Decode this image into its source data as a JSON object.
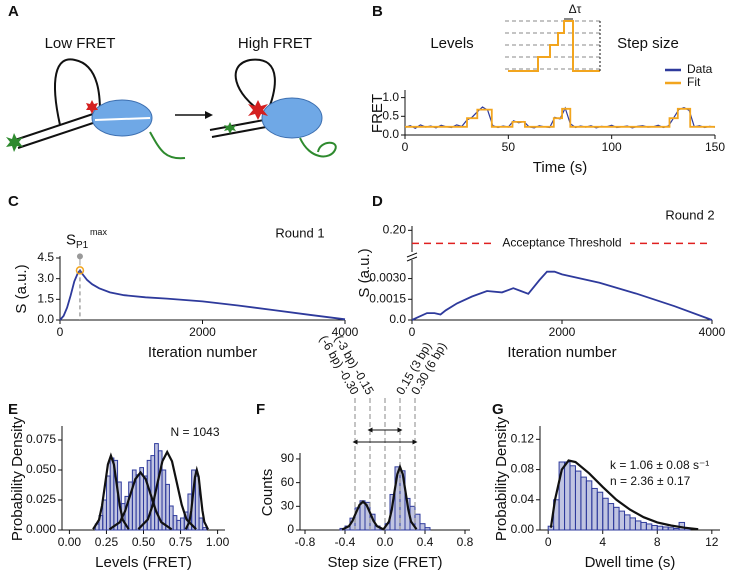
{
  "figure": {
    "panel_labels": [
      "A",
      "B",
      "C",
      "D",
      "E",
      "F",
      "G"
    ],
    "diagram": {
      "low": "Low FRET",
      "high": "High FRET"
    },
    "schematic": {
      "levels": "Levels",
      "step_size": "Step size",
      "dwell": "Δτ"
    }
  },
  "chart_data": [
    {
      "type": "line",
      "x_label": "Time (s)",
      "y_label": "FRET",
      "xlim": [
        0,
        150
      ],
      "ylim": [
        0,
        1.15
      ],
      "xticks": [
        0,
        50,
        100,
        150
      ],
      "yticks": [
        {
          "value": 0,
          "label": "0.0"
        },
        {
          "value": 0.5,
          "label": "0.5"
        },
        {
          "value": 1,
          "label": "1.0"
        }
      ],
      "legend": "upper right",
      "series": [
        {
          "name": "Data",
          "color": "#2e3a9c",
          "x": [
            0,
            2.5,
            5,
            7.5,
            10,
            12.5,
            15,
            17.5,
            20,
            22.5,
            25,
            27.5,
            30,
            32.5,
            35,
            37.5,
            40,
            42.5,
            45,
            47.5,
            50,
            52.5,
            55,
            57.5,
            60,
            62.5,
            65,
            67.5,
            70,
            72.5,
            75,
            77.5,
            80,
            82.5,
            85,
            87.5,
            90,
            92.5,
            95,
            97.5,
            100,
            102.5,
            105,
            107.5,
            110,
            112.5,
            115,
            117.5,
            120,
            122.5,
            125,
            127.5,
            130,
            132.5,
            135,
            137.5,
            140,
            142.5,
            145,
            147.5,
            150
          ],
          "values": [
            0.2,
            0.25,
            0.18,
            0.27,
            0.21,
            0.24,
            0.19,
            0.26,
            0.22,
            0.2,
            0.27,
            0.23,
            0.4,
            0.48,
            0.62,
            0.75,
            0.66,
            0.25,
            0.2,
            0.24,
            0.21,
            0.38,
            0.33,
            0.36,
            0.22,
            0.19,
            0.25,
            0.22,
            0.2,
            0.47,
            0.43,
            0.72,
            0.3,
            0.2,
            0.24,
            0.21,
            0.25,
            0.19,
            0.23,
            0.22,
            0.26,
            0.2,
            0.22,
            0.24,
            0.19,
            0.23,
            0.25,
            0.21,
            0.22,
            0.26,
            0.2,
            0.24,
            0.46,
            0.68,
            0.73,
            0.66,
            0.22,
            0.25,
            0.2,
            0.23,
            0.21
          ]
        },
        {
          "name": "Fit",
          "color": "#f2a51e",
          "x": [
            0,
            30,
            30,
            35,
            35,
            42,
            42,
            52,
            52,
            58,
            58,
            72,
            72,
            76,
            76,
            80,
            80,
            128,
            128,
            132,
            132,
            138,
            138,
            150
          ],
          "values": [
            0.22,
            0.22,
            0.45,
            0.45,
            0.68,
            0.68,
            0.22,
            0.22,
            0.35,
            0.35,
            0.22,
            0.22,
            0.45,
            0.45,
            0.7,
            0.7,
            0.22,
            0.22,
            0.45,
            0.45,
            0.7,
            0.7,
            0.22,
            0.22
          ]
        }
      ]
    },
    {
      "type": "line",
      "title": "Round 1",
      "x_label": "Iteration number",
      "y_label": "S (a.u.)",
      "xlim": [
        0,
        4000
      ],
      "ylim": [
        0,
        4.5
      ],
      "xticks": [
        0,
        2000,
        4000
      ],
      "yticks": [
        {
          "value": 0,
          "label": "0.0"
        },
        {
          "value": 1.5,
          "label": "1.5"
        },
        {
          "value": 3,
          "label": "3.0"
        },
        {
          "value": 4.5,
          "label": "4.5"
        }
      ],
      "peak": {
        "x": 280,
        "y": 3.6,
        "label": "S",
        "subscript": "P1",
        "superscript": "max"
      },
      "series": [
        {
          "color": "#2e3a9c",
          "x": [
            0,
            50,
            100,
            150,
            200,
            250,
            280,
            320,
            380,
            450,
            550,
            700,
            900,
            1200,
            1500,
            2000,
            2500,
            3000,
            3500,
            4000
          ],
          "values": [
            0,
            0.3,
            0.9,
            1.8,
            2.8,
            3.4,
            3.6,
            3.3,
            2.9,
            2.6,
            2.3,
            2.0,
            1.8,
            1.65,
            1.55,
            1.35,
            1.05,
            0.72,
            0.38,
            0.05
          ]
        }
      ]
    },
    {
      "type": "line",
      "title": "Round 2",
      "x_label": "Iteration number",
      "y_label": "S (a.u.)",
      "xlim": [
        0,
        4000
      ],
      "ylim": [
        0,
        0.0042
      ],
      "xticks": [
        0,
        2000,
        4000
      ],
      "yticks": [
        {
          "value": 0,
          "label": "0.0"
        },
        {
          "value": 0.0015,
          "label": "0.0015"
        },
        {
          "value": 0.003,
          "label": "0.0030"
        }
      ],
      "y_break": {
        "ylim": [
          0.15,
          0.21
        ],
        "yticks": [
          {
            "value": 0.2,
            "label": "0.20"
          }
        ]
      },
      "threshold": 0.17,
      "threshold_label": "Acceptance Threshold",
      "threshold_color": "#e02020",
      "series": [
        {
          "color": "#2e3a9c",
          "x": [
            0,
            80,
            200,
            300,
            380,
            450,
            600,
            800,
            1000,
            1200,
            1350,
            1450,
            1550,
            1700,
            1800,
            1900,
            2000,
            2500,
            3000,
            3500,
            4000
          ],
          "values": [
            0,
            0.0002,
            0.0005,
            0.0005,
            0.0004,
            0.0007,
            0.0012,
            0.0017,
            0.0021,
            0.002,
            0.0023,
            0.0021,
            0.0019,
            0.0029,
            0.0035,
            0.0035,
            0.0033,
            0.0027,
            0.0019,
            0.001,
            0
          ]
        }
      ]
    },
    {
      "type": "histogram",
      "x_label": "Levels (FRET)",
      "y_label": "Probability Density",
      "annotation": "N = 1043",
      "color": "#2e3a9c",
      "xlim": [
        -0.05,
        1.05
      ],
      "ylim": [
        0,
        0.085
      ],
      "xticks": [
        {
          "value": 0,
          "label": "0.00"
        },
        {
          "value": 0.25,
          "label": "0.25"
        },
        {
          "value": 0.5,
          "label": "0.50"
        },
        {
          "value": 0.75,
          "label": "0.75"
        },
        {
          "value": 1,
          "label": "1.00"
        }
      ],
      "yticks": [
        {
          "value": 0,
          "label": "0.000"
        },
        {
          "value": 0.025,
          "label": "0.025"
        },
        {
          "value": 0.05,
          "label": "0.050"
        },
        {
          "value": 0.075,
          "label": "0.075"
        }
      ],
      "bins": [
        0.175,
        0.2,
        0.225,
        0.25,
        0.275,
        0.3,
        0.325,
        0.35,
        0.375,
        0.4,
        0.425,
        0.45,
        0.475,
        0.5,
        0.525,
        0.55,
        0.575,
        0.6,
        0.625,
        0.65,
        0.675,
        0.7,
        0.725,
        0.75,
        0.775,
        0.8,
        0.825,
        0.85,
        0.875,
        0.9,
        0.925
      ],
      "values": [
        0.005,
        0.012,
        0.025,
        0.045,
        0.06,
        0.058,
        0.04,
        0.022,
        0.028,
        0.04,
        0.05,
        0.046,
        0.052,
        0.045,
        0.058,
        0.062,
        0.072,
        0.066,
        0.05,
        0.038,
        0.02,
        0.012,
        0.008,
        0.01,
        0.015,
        0.03,
        0.05,
        0.045,
        0.01,
        0.002
      ],
      "fits": [
        {
          "x": [
            0.16,
            0.2,
            0.22,
            0.24,
            0.26,
            0.28,
            0.3,
            0.32,
            0.34,
            0.36,
            0.4
          ],
          "values": [
            0.0007,
            0.0084,
            0.0202,
            0.0376,
            0.0547,
            0.062,
            0.0547,
            0.0376,
            0.0202,
            0.0084,
            0.0007
          ]
        },
        {
          "x": [
            0.27,
            0.34,
            0.375,
            0.41,
            0.445,
            0.48,
            0.515,
            0.55,
            0.585,
            0.62,
            0.69
          ],
          "values": [
            0.0005,
            0.0065,
            0.0156,
            0.0291,
            0.0423,
            0.048,
            0.0423,
            0.0291,
            0.0156,
            0.0065,
            0.0005
          ]
        },
        {
          "x": [
            0.465,
            0.53,
            0.5625,
            0.595,
            0.6275,
            0.66,
            0.6925,
            0.725,
            0.7575,
            0.79,
            0.855
          ],
          "values": [
            0.0007,
            0.0088,
            0.0211,
            0.0395,
            0.0573,
            0.065,
            0.0573,
            0.0395,
            0.0211,
            0.0088,
            0.0007
          ]
        },
        {
          "x": [
            0.785,
            0.81,
            0.8225,
            0.835,
            0.8475,
            0.86,
            0.8725,
            0.885,
            0.8975,
            0.91,
            0.935
          ],
          "values": [
            0.0006,
            0.0068,
            0.0163,
            0.0304,
            0.0441,
            0.05,
            0.0441,
            0.0304,
            0.0163,
            0.0068,
            0.0006
          ]
        }
      ]
    },
    {
      "type": "histogram",
      "x_label": "Step size (FRET)",
      "y_label": "Counts",
      "color": "#2e3a9c",
      "xlim": [
        -0.85,
        0.85
      ],
      "ylim": [
        0,
        95
      ],
      "xticks": [
        -0.8,
        -0.4,
        {
          "value": 0,
          "label": "0.0"
        },
        0.4,
        0.8
      ],
      "yticks": [
        0,
        30,
        60,
        90
      ],
      "bins": [
        -0.5,
        -0.45,
        -0.4,
        -0.35,
        -0.3,
        -0.25,
        -0.2,
        -0.15,
        -0.1,
        -0.05,
        0,
        0.05,
        0.1,
        0.15,
        0.2,
        0.25,
        0.3,
        0.35,
        0.4,
        0.45,
        0.5
      ],
      "values": [
        0,
        2,
        5,
        15,
        28,
        37,
        35,
        20,
        5,
        2,
        8,
        45,
        80,
        75,
        40,
        30,
        20,
        8,
        3,
        0
      ],
      "reference_lines": [
        {
          "value": -0.3,
          "label": "(-6 bp) -0.30"
        },
        {
          "value": -0.15,
          "label": "(-3 bp) -0.15"
        },
        {
          "value": 0
        },
        {
          "value": 0.15,
          "label": "0.15 (3 bp)"
        },
        {
          "value": 0.3,
          "label": "0.30 (6 bp)"
        }
      ],
      "fits": [
        {
          "x": [
            -0.43,
            -0.36,
            -0.325,
            -0.29,
            -0.255,
            -0.22,
            -0.185,
            -0.15,
            -0.115,
            -0.08,
            -0.01
          ],
          "values": [
            0.4,
            4.9,
            11.7,
            21.9,
            31.8,
            36,
            31.8,
            21.9,
            11.7,
            4.9,
            0.4
          ]
        },
        {
          "x": [
            -0.015,
            0.04,
            0.0675,
            0.095,
            0.1225,
            0.15,
            0.1775,
            0.205,
            0.2325,
            0.26,
            0.315
          ],
          "values": [
            0.9,
            10.8,
            26,
            48.6,
            70.6,
            80,
            70.6,
            48.6,
            26,
            10.8,
            0.9
          ]
        }
      ]
    },
    {
      "type": "histogram",
      "x_label": "Dwell time (s)",
      "y_label": "Probability Density",
      "color": "#2e3a9c",
      "annotations": [
        "k = 1.06 ± 0.08 s⁻¹",
        "n = 2.36 ± 0.17"
      ],
      "xlim": [
        -0.6,
        12.6
      ],
      "ylim": [
        0,
        0.135
      ],
      "xticks": [
        0,
        4,
        8,
        12
      ],
      "yticks": [
        {
          "value": 0,
          "label": "0.00"
        },
        0.04,
        0.08,
        0.12
      ],
      "bins": [
        0,
        0.4,
        0.8,
        1.2,
        1.6,
        2,
        2.4,
        2.8,
        3.2,
        3.6,
        4,
        4.4,
        4.8,
        5.2,
        5.6,
        6,
        6.4,
        6.8,
        7.2,
        7.6,
        8,
        8.4,
        8.8,
        9.2,
        9.6,
        10,
        10.4
      ],
      "values": [
        0.005,
        0.04,
        0.09,
        0.09,
        0.085,
        0.078,
        0.07,
        0.065,
        0.055,
        0.05,
        0.042,
        0.035,
        0.03,
        0.025,
        0.02,
        0.016,
        0.012,
        0.01,
        0.008,
        0.006,
        0.005,
        0.004,
        0.003,
        0.002,
        0.01,
        0.002
      ],
      "fits": [
        {
          "x": [
            0.2,
            0.5,
            1,
            1.5,
            2,
            3,
            4,
            5,
            6,
            7,
            8,
            9,
            10,
            11
          ],
          "values": [
            0.003,
            0.04,
            0.08,
            0.092,
            0.09,
            0.075,
            0.057,
            0.04,
            0.027,
            0.017,
            0.01,
            0.006,
            0.003,
            0.001
          ]
        }
      ]
    }
  ]
}
